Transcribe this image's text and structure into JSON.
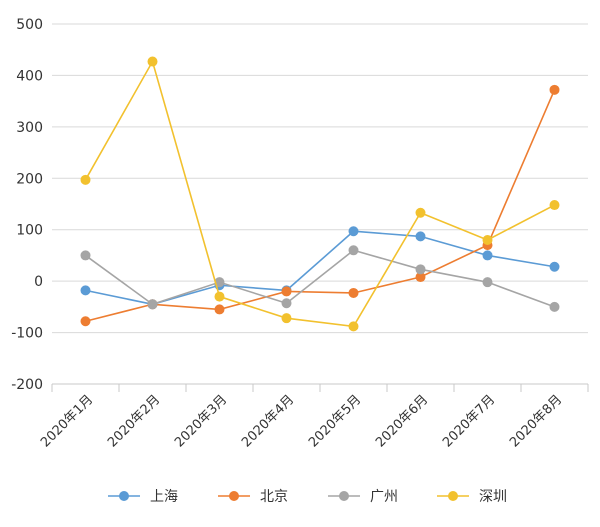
{
  "chart_data": {
    "type": "line",
    "x": [
      "2020年1月",
      "2020年2月",
      "2020年3月",
      "2020年4月",
      "2020年5月",
      "2020年6月",
      "2020年7月",
      "2020年8月"
    ],
    "ylim": [
      -200,
      500
    ],
    "yticks": [
      "500",
      "400",
      "300",
      "200",
      "100",
      "0",
      "-100",
      "-200"
    ],
    "grid": true,
    "legend_position": "bottom",
    "series": [
      {
        "name": "上海",
        "color": "#5b9bd5",
        "values": [
          -18,
          -45,
          -8,
          -18,
          97,
          87,
          50,
          28
        ]
      },
      {
        "name": "北京",
        "color": "#ed7d31",
        "values": [
          -78,
          -45,
          -55,
          -20,
          -23,
          8,
          70,
          372
        ]
      },
      {
        "name": "广州",
        "color": "#a5a5a5",
        "values": [
          50,
          -45,
          -2,
          -43,
          60,
          23,
          -2,
          -50
        ]
      },
      {
        "name": "深圳",
        "color": "#f2c12e",
        "values": [
          197,
          427,
          -30,
          -72,
          -88,
          133,
          80,
          148
        ]
      }
    ]
  }
}
